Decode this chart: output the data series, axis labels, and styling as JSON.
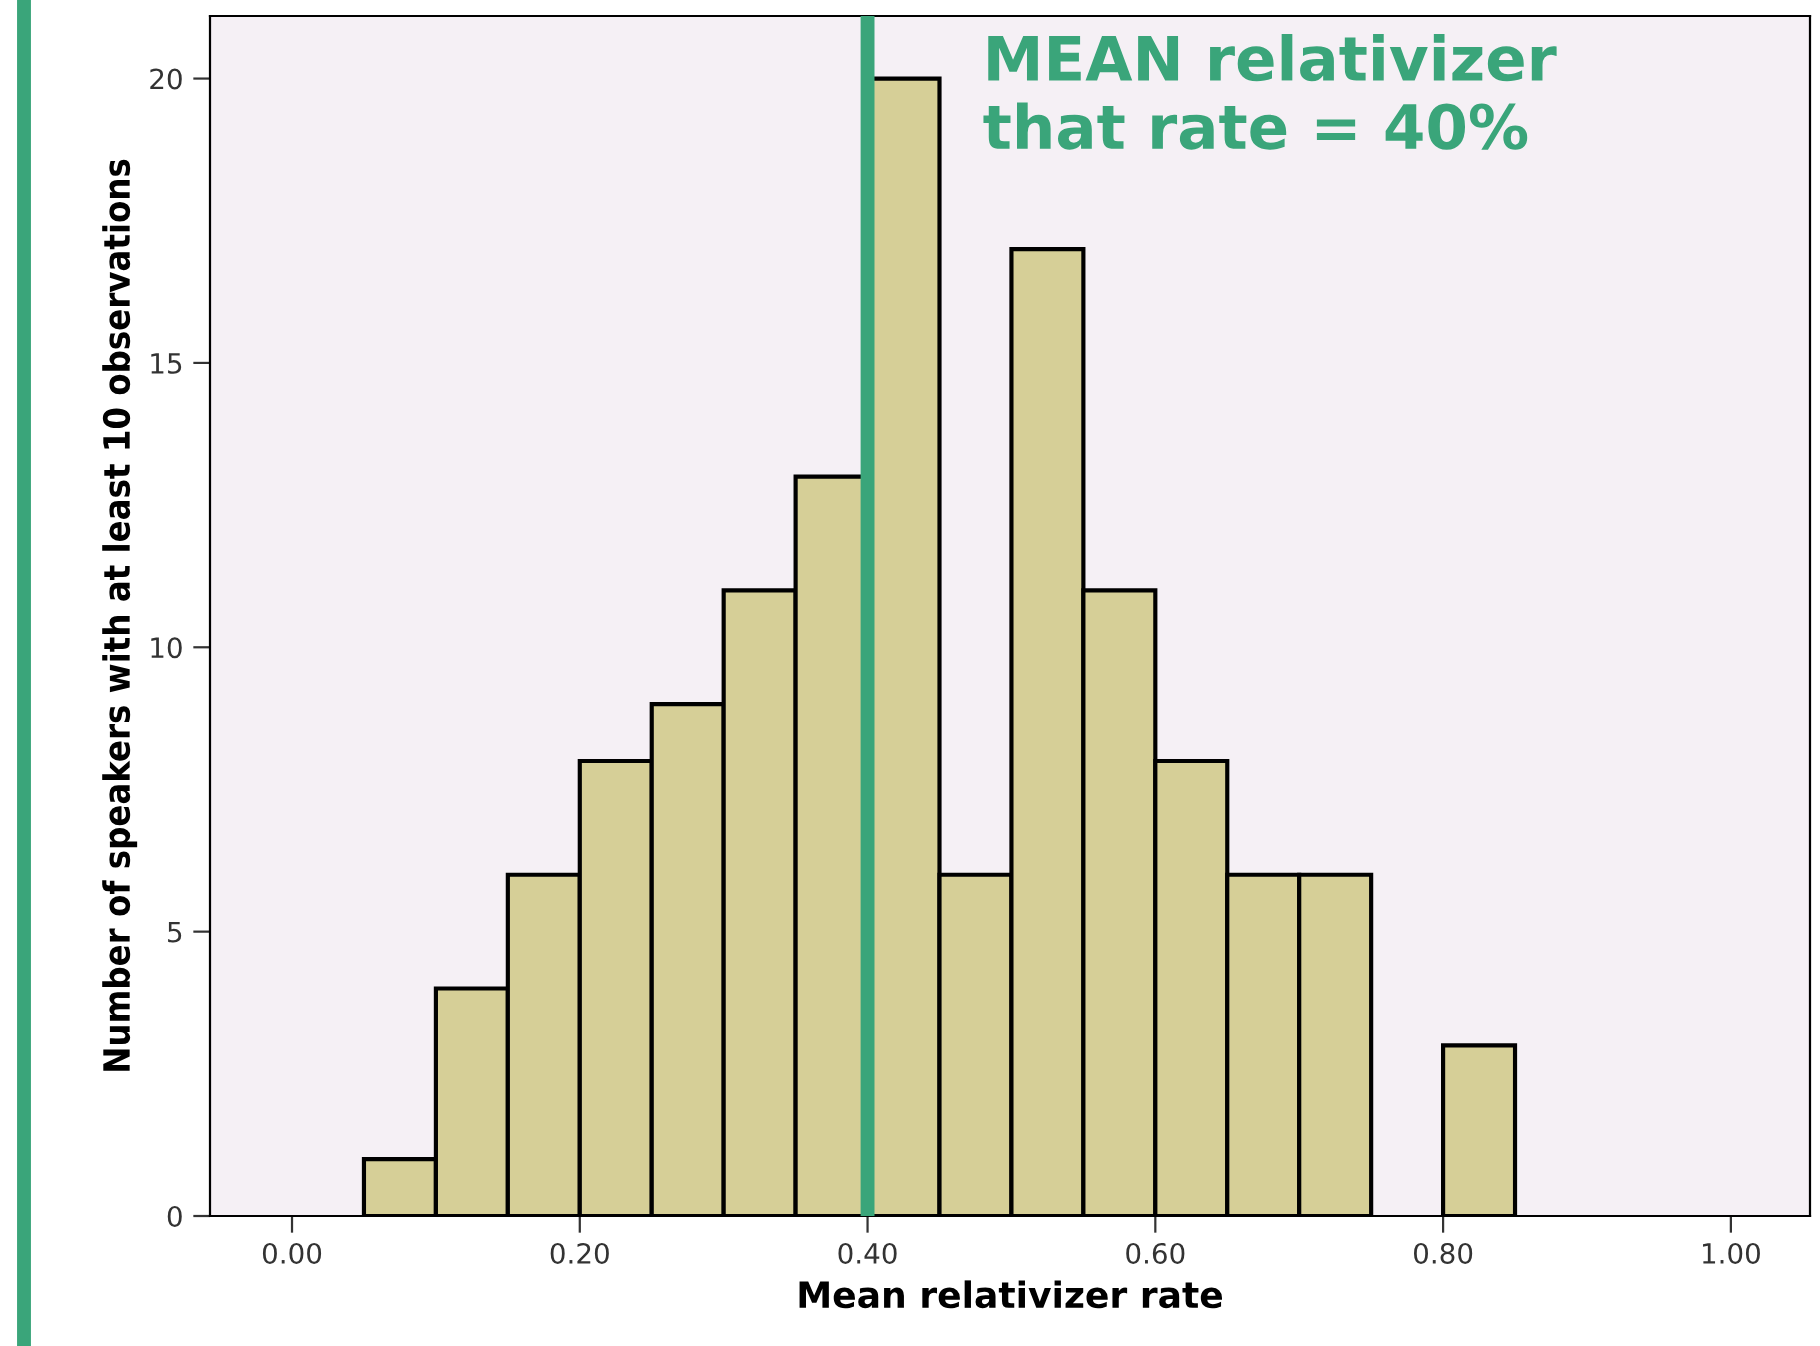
{
  "chart_data": {
    "type": "histogram",
    "xlabel": "Mean relativizer rate",
    "ylabel": "Number of speakers with at least 10 observations",
    "bins": [
      0.05,
      0.1,
      0.15,
      0.2,
      0.25,
      0.3,
      0.35,
      0.4,
      0.45,
      0.5,
      0.55,
      0.6,
      0.65,
      0.7,
      0.75,
      0.8,
      0.85
    ],
    "values": [
      1,
      4,
      6,
      8,
      9,
      11,
      13,
      20,
      6,
      17,
      11,
      8,
      6,
      6,
      0,
      3
    ],
    "color": "#d6cf97",
    "xlim": [
      -0.057,
      1.055
    ],
    "ylim": [
      0,
      21.1
    ],
    "xticks": [
      {
        "value": 0,
        "label": "0.00"
      },
      {
        "value": 0.2,
        "label": "0.20"
      },
      {
        "value": 0.4,
        "label": "0.40"
      },
      {
        "value": 0.6,
        "label": "0.60"
      },
      {
        "value": 0.8,
        "label": "0.80"
      },
      {
        "value": 1.0,
        "label": "1.00"
      }
    ],
    "yticks": [
      0,
      5,
      10,
      15,
      20
    ],
    "grid": false,
    "ref_lines": [
      {
        "axis": "x",
        "value": 0.4,
        "label": "MEAN relativizer\nthat rate = 40%",
        "color": "#3aa57a"
      }
    ]
  }
}
